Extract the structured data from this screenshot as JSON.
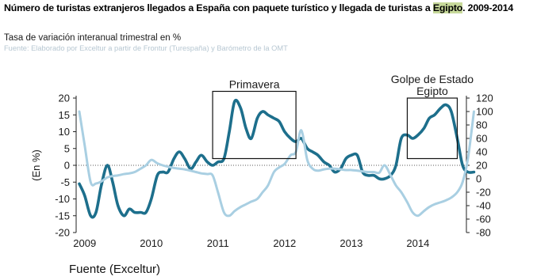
{
  "title": {
    "part1": "Número de turistas extranjeros llegados a España con paquete turístico y llegada de turistas a ",
    "highlight": "Egipto",
    "part2": ". 2009-2014"
  },
  "subtitle": "Tasa de variación interanual trimestral en %",
  "source": "Fuente: Elaborado por Exceltur a partir de Frontur (Turespaña) y Barómetro de la OMT",
  "footer": "Fuente (Exceltur)",
  "colors": {
    "spain": "#1d6f8c",
    "egypt": "#a9cfe2",
    "axis": "#222222",
    "box": "#111111"
  },
  "chart_data": {
    "type": "line",
    "title": "Número de turistas extranjeros llegados a España con paquete turístico y llegada de turistas a Egipto. 2009-2014",
    "ylabel": "(En %)",
    "x_tick_labels": [
      "2009",
      "2010",
      "2011",
      "2012",
      "2013",
      "2014"
    ],
    "x_ticks": [
      2009,
      2010,
      2011,
      2012,
      2013,
      2014
    ],
    "xlim": [
      2009,
      2014.95
    ],
    "ylim": [
      -20,
      20
    ],
    "y_ticks": [
      20,
      15,
      10,
      5,
      0,
      -5,
      -10,
      -15,
      -20
    ],
    "y2lim": [
      -80,
      120
    ],
    "y2_ticks": [
      120,
      100,
      80,
      60,
      40,
      20,
      0,
      -20,
      -40,
      -60,
      -80
    ],
    "grid": false,
    "series": [
      {
        "role": "spain_paquete_turistico",
        "axis": "left",
        "color": "#1d6f8c",
        "x": [
          2009.0,
          2009.08,
          2009.17,
          2009.25,
          2009.33,
          2009.42,
          2009.5,
          2009.58,
          2009.67,
          2009.75,
          2009.83,
          2009.92,
          2010.0,
          2010.08,
          2010.17,
          2010.25,
          2010.33,
          2010.42,
          2010.5,
          2010.58,
          2010.67,
          2010.75,
          2010.83,
          2010.92,
          2011.0,
          2011.08,
          2011.17,
          2011.25,
          2011.33,
          2011.42,
          2011.5,
          2011.58,
          2011.67,
          2011.75,
          2011.83,
          2011.92,
          2012.0,
          2012.08,
          2012.17,
          2012.25,
          2012.33,
          2012.42,
          2012.5,
          2012.58,
          2012.67,
          2012.75,
          2012.83,
          2012.92,
          2013.0,
          2013.08,
          2013.17,
          2013.25,
          2013.33,
          2013.42,
          2013.5,
          2013.58,
          2013.67,
          2013.75,
          2013.83,
          2013.92,
          2014.0,
          2014.08,
          2014.17,
          2014.25,
          2014.33,
          2014.42,
          2014.5,
          2014.58,
          2014.67,
          2014.75,
          2014.83,
          2014.92
        ],
        "y": [
          -5.5,
          -9,
          -15,
          -14,
          -6,
          0,
          -5,
          -12,
          -15,
          -13,
          -14,
          -14,
          -14,
          -10,
          -3,
          -2,
          -2,
          2,
          4,
          2,
          -1,
          1,
          3,
          1,
          0,
          1,
          2,
          10,
          19,
          17,
          11,
          8,
          14,
          16,
          15,
          14,
          13,
          10,
          8,
          7,
          8,
          5,
          4,
          3,
          1,
          0,
          -2,
          -1,
          2,
          3,
          3,
          -2,
          -3,
          -3,
          -4,
          -4,
          -3,
          0,
          8,
          9,
          8,
          9,
          11,
          14,
          15,
          17,
          18,
          16,
          8,
          0,
          -2,
          -2
        ]
      },
      {
        "role": "egipto_llegadas",
        "axis": "right",
        "color": "#a9cfe2",
        "x": [
          2009.0,
          2009.08,
          2009.17,
          2009.25,
          2009.33,
          2009.42,
          2009.5,
          2009.58,
          2009.67,
          2009.75,
          2009.83,
          2009.92,
          2010.0,
          2010.08,
          2010.17,
          2010.25,
          2010.33,
          2010.42,
          2010.5,
          2010.58,
          2010.67,
          2010.75,
          2010.83,
          2010.92,
          2011.0,
          2011.08,
          2011.17,
          2011.25,
          2011.33,
          2011.42,
          2011.5,
          2011.58,
          2011.67,
          2011.75,
          2011.83,
          2011.92,
          2012.0,
          2012.08,
          2012.17,
          2012.25,
          2012.33,
          2012.42,
          2012.5,
          2012.58,
          2012.67,
          2012.75,
          2012.83,
          2012.92,
          2013.0,
          2013.08,
          2013.17,
          2013.25,
          2013.33,
          2013.42,
          2013.5,
          2013.58,
          2013.67,
          2013.75,
          2013.83,
          2013.92,
          2014.0,
          2014.08,
          2014.17,
          2014.25,
          2014.33,
          2014.42,
          2014.5,
          2014.58,
          2014.67,
          2014.75,
          2014.83,
          2014.92
        ],
        "y": [
          100,
          50,
          -5,
          -7,
          -4,
          2,
          4,
          5,
          7,
          8,
          10,
          15,
          20,
          28,
          23,
          20,
          18,
          16,
          15,
          14,
          12,
          10,
          8,
          7,
          5,
          -20,
          -50,
          -55,
          -48,
          -42,
          -38,
          -34,
          -30,
          -20,
          -10,
          10,
          17,
          22,
          35,
          40,
          72,
          28,
          15,
          12,
          14,
          15,
          15,
          14,
          13,
          13,
          12,
          11,
          10,
          10,
          9,
          20,
          5,
          -10,
          -20,
          -35,
          -50,
          -55,
          -48,
          -42,
          -38,
          -35,
          -32,
          -28,
          -20,
          -5,
          30,
          100
        ]
      }
    ],
    "annotations": [
      {
        "label": "Primavera",
        "x_start": 2011.0,
        "x_end": 2012.25,
        "y_top": 22,
        "y_bottom": 2
      },
      {
        "label": "Golpe de Estado\nEgipto",
        "x_start": 2013.92,
        "x_end": 2014.67,
        "y_top": 20,
        "y_bottom": 2
      }
    ]
  }
}
